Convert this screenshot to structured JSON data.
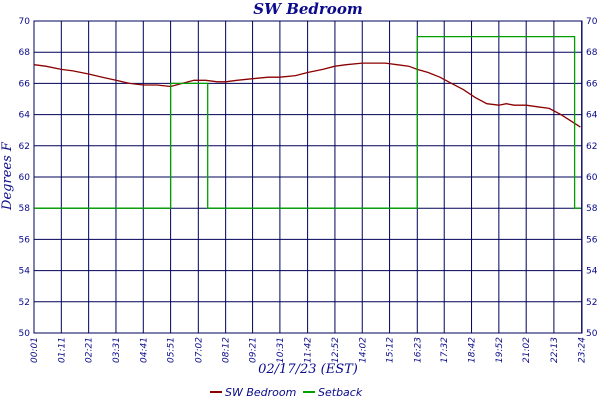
{
  "chart_data": {
    "type": "line",
    "title": "SW Bedroom",
    "xlabel": "02/17/23 (EST)",
    "ylabel": "Degrees F",
    "ylim": [
      50,
      70
    ],
    "yticks": [
      50,
      52,
      54,
      56,
      58,
      60,
      62,
      64,
      66,
      68,
      70
    ],
    "xlim": [
      0,
      1404
    ],
    "x_tick_labels": [
      "00:01",
      "01:11",
      "02:21",
      "03:31",
      "04:41",
      "05:51",
      "07:02",
      "08:12",
      "09:21",
      "10:31",
      "11:42",
      "12:52",
      "14:02",
      "15:12",
      "16:23",
      "17:32",
      "18:42",
      "19:52",
      "21:02",
      "22:13",
      "23:24"
    ],
    "x_tick_minutes": [
      0,
      70,
      140,
      210,
      280,
      350,
      421,
      491,
      560,
      630,
      701,
      771,
      841,
      911,
      982,
      1051,
      1121,
      1191,
      1261,
      1332,
      1403
    ],
    "grid": true,
    "legend_position": "bottom-center",
    "series": [
      {
        "name": "SW Bedroom",
        "color": "#8b0000",
        "x": [
          0,
          30,
          70,
          100,
          140,
          175,
          210,
          245,
          280,
          315,
          350,
          380,
          410,
          440,
          470,
          491,
          520,
          560,
          600,
          630,
          670,
          701,
          740,
          771,
          800,
          841,
          870,
          900,
          930,
          960,
          982,
          1010,
          1040,
          1070,
          1100,
          1130,
          1160,
          1191,
          1210,
          1230,
          1261,
          1290,
          1320,
          1350,
          1375,
          1400
        ],
        "y": [
          67.2,
          67.1,
          66.9,
          66.8,
          66.6,
          66.4,
          66.2,
          66.0,
          65.9,
          65.9,
          65.8,
          66.0,
          66.2,
          66.2,
          66.1,
          66.1,
          66.2,
          66.3,
          66.4,
          66.4,
          66.5,
          66.7,
          66.9,
          67.1,
          67.2,
          67.3,
          67.3,
          67.3,
          67.2,
          67.1,
          66.9,
          66.7,
          66.4,
          66.0,
          65.6,
          65.1,
          64.7,
          64.6,
          64.7,
          64.6,
          64.6,
          64.5,
          64.4,
          64.0,
          63.6,
          63.2
        ]
      },
      {
        "name": "Setback",
        "color": "#00a000",
        "x": [
          0,
          350,
          350,
          445,
          445,
          982,
          982,
          1385,
          1385,
          1400
        ],
        "y": [
          58,
          58,
          66,
          66,
          58,
          58,
          69,
          69,
          58,
          58
        ]
      }
    ]
  }
}
